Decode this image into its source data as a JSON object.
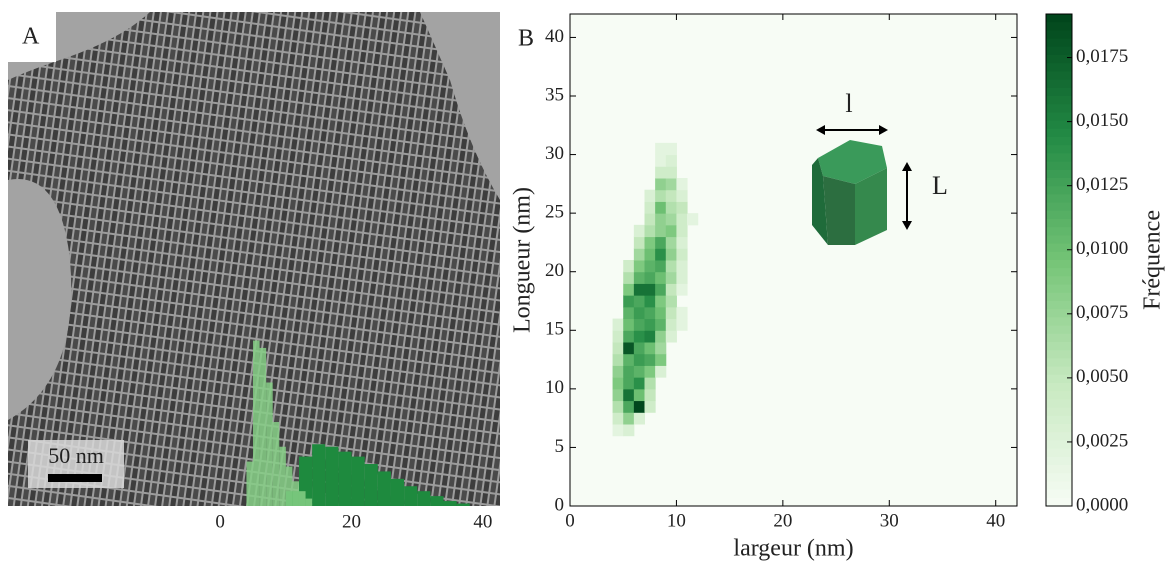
{
  "panel_labels": [
    "A",
    "B"
  ],
  "scale_bar": "50 nm",
  "chart_data": [
    {
      "type": "histogram",
      "xticks": [
        0,
        20,
        40
      ],
      "xlim": [
        -32.3,
        42.6
      ],
      "ylim": [
        0,
        0.2
      ],
      "series": [
        {
          "color": "#1e8a3e",
          "bins": [
            10,
            12,
            14,
            16,
            18,
            20,
            22,
            24,
            26,
            28,
            30,
            32,
            34,
            36,
            38
          ],
          "values": [
            0.006,
            0.02,
            0.025,
            0.024,
            0.022,
            0.02,
            0.017,
            0.014,
            0.011,
            0.008,
            0.006,
            0.004,
            0.002,
            0.001
          ]
        },
        {
          "color": "#86cf86",
          "bins": [
            4,
            5,
            6,
            7,
            8,
            9,
            10,
            11,
            12,
            13,
            14
          ],
          "values": [
            0.018,
            0.067,
            0.064,
            0.05,
            0.034,
            0.024,
            0.016,
            0.01,
            0.006,
            0.003
          ]
        }
      ]
    },
    {
      "type": "hist2d",
      "xlabel": "largeur (nm)",
      "ylabel": "Longueur (nm)",
      "xlim": [
        0,
        42
      ],
      "ylim": [
        0,
        42
      ],
      "xticks": [
        0,
        10,
        20,
        30,
        40
      ],
      "yticks": [
        0,
        5,
        10,
        15,
        20,
        25,
        30,
        35,
        40
      ],
      "colormap": [
        "#f7fcf5",
        "#c7e9c0",
        "#74c476",
        "#238b45",
        "#00441b"
      ],
      "clim": [
        0,
        0.0192
      ],
      "cticks": [
        {
          "value": 0,
          "label": "0,0000"
        },
        {
          "value": 0.0025,
          "label": "0,0025"
        },
        {
          "value": 0.005,
          "label": "0,0050"
        },
        {
          "value": 0.0075,
          "label": "0,0075"
        },
        {
          "value": 0.01,
          "label": "0,0100"
        },
        {
          "value": 0.0125,
          "label": "0,0125"
        },
        {
          "value": 0.015,
          "label": "0,0150"
        },
        {
          "value": 0.0175,
          "label": "0,0175"
        }
      ],
      "colorbar_label": "Fréquence",
      "inset_labels": [
        "l",
        "L"
      ],
      "cells": [
        [
          4,
          6,
          0.002
        ],
        [
          5,
          6,
          0.003
        ],
        [
          4,
          7,
          0.004
        ],
        [
          5,
          7,
          0.008
        ],
        [
          6,
          7,
          0.003
        ],
        [
          4,
          8,
          0.006
        ],
        [
          5,
          8,
          0.012
        ],
        [
          6,
          8,
          0.019
        ],
        [
          7,
          8,
          0.004
        ],
        [
          4,
          9,
          0.008
        ],
        [
          5,
          9,
          0.016
        ],
        [
          6,
          9,
          0.01
        ],
        [
          7,
          9,
          0.005
        ],
        [
          4,
          10,
          0.009
        ],
        [
          5,
          10,
          0.012
        ],
        [
          6,
          10,
          0.014
        ],
        [
          7,
          10,
          0.006
        ],
        [
          4,
          11,
          0.008
        ],
        [
          5,
          11,
          0.012
        ],
        [
          6,
          11,
          0.011
        ],
        [
          7,
          11,
          0.009
        ],
        [
          8,
          11,
          0.003
        ],
        [
          4,
          12,
          0.006
        ],
        [
          5,
          12,
          0.011
        ],
        [
          6,
          12,
          0.013
        ],
        [
          7,
          12,
          0.012
        ],
        [
          8,
          12,
          0.009
        ],
        [
          4,
          13,
          0.005
        ],
        [
          5,
          13,
          0.018
        ],
        [
          6,
          13,
          0.012
        ],
        [
          7,
          13,
          0.01
        ],
        [
          8,
          13,
          0.007
        ],
        [
          4,
          14,
          0.004
        ],
        [
          5,
          14,
          0.012
        ],
        [
          6,
          14,
          0.014
        ],
        [
          7,
          14,
          0.015
        ],
        [
          8,
          14,
          0.008
        ],
        [
          9,
          14,
          0.003
        ],
        [
          4,
          15,
          0.003
        ],
        [
          5,
          15,
          0.01
        ],
        [
          6,
          15,
          0.012
        ],
        [
          7,
          15,
          0.013
        ],
        [
          8,
          15,
          0.011
        ],
        [
          9,
          15,
          0.004
        ],
        [
          10,
          15,
          0.002
        ],
        [
          5,
          16,
          0.011
        ],
        [
          6,
          16,
          0.013
        ],
        [
          7,
          16,
          0.012
        ],
        [
          8,
          16,
          0.01
        ],
        [
          9,
          16,
          0.005
        ],
        [
          10,
          16,
          0.002
        ],
        [
          5,
          17,
          0.013
        ],
        [
          6,
          17,
          0.012
        ],
        [
          7,
          17,
          0.014
        ],
        [
          8,
          17,
          0.009
        ],
        [
          9,
          17,
          0.006
        ],
        [
          5,
          18,
          0.009
        ],
        [
          6,
          18,
          0.016
        ],
        [
          7,
          18,
          0.016
        ],
        [
          8,
          18,
          0.012
        ],
        [
          9,
          18,
          0.005
        ],
        [
          10,
          18,
          0.002
        ],
        [
          5,
          19,
          0.006
        ],
        [
          6,
          19,
          0.011
        ],
        [
          7,
          19,
          0.012
        ],
        [
          8,
          19,
          0.01
        ],
        [
          9,
          19,
          0.007
        ],
        [
          10,
          19,
          0.003
        ],
        [
          5,
          20,
          0.004
        ],
        [
          6,
          20,
          0.009
        ],
        [
          7,
          20,
          0.011
        ],
        [
          8,
          20,
          0.012
        ],
        [
          9,
          20,
          0.006
        ],
        [
          10,
          20,
          0.003
        ],
        [
          6,
          21,
          0.007
        ],
        [
          7,
          21,
          0.01
        ],
        [
          8,
          21,
          0.014
        ],
        [
          9,
          21,
          0.008
        ],
        [
          10,
          21,
          0.004
        ],
        [
          6,
          22,
          0.005
        ],
        [
          7,
          22,
          0.009
        ],
        [
          8,
          22,
          0.012
        ],
        [
          9,
          22,
          0.007
        ],
        [
          10,
          22,
          0.003
        ],
        [
          6,
          23,
          0.003
        ],
        [
          7,
          23,
          0.006
        ],
        [
          8,
          23,
          0.008
        ],
        [
          9,
          23,
          0.009
        ],
        [
          10,
          23,
          0.004
        ],
        [
          7,
          24,
          0.005
        ],
        [
          8,
          24,
          0.008
        ],
        [
          9,
          24,
          0.007
        ],
        [
          10,
          24,
          0.004
        ],
        [
          11,
          24,
          0.002
        ],
        [
          7,
          25,
          0.004
        ],
        [
          8,
          25,
          0.01
        ],
        [
          9,
          25,
          0.006
        ],
        [
          10,
          25,
          0.005
        ],
        [
          7,
          26,
          0.003
        ],
        [
          8,
          26,
          0.006
        ],
        [
          9,
          26,
          0.005
        ],
        [
          10,
          26,
          0.003
        ],
        [
          8,
          27,
          0.008
        ],
        [
          9,
          27,
          0.007
        ],
        [
          10,
          27,
          0.002
        ],
        [
          8,
          28,
          0.004
        ],
        [
          9,
          28,
          0.004
        ],
        [
          8,
          29,
          0.002
        ],
        [
          9,
          29,
          0.003
        ],
        [
          8,
          30,
          0.002
        ],
        [
          9,
          30,
          0.002
        ]
      ]
    }
  ]
}
